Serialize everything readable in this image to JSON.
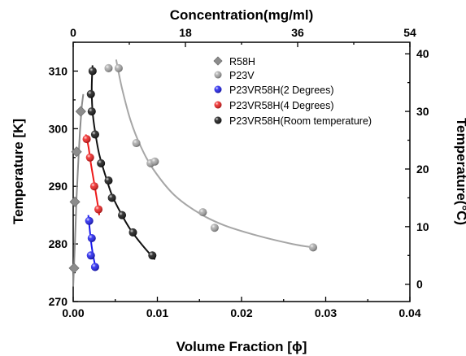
{
  "chart_data": {
    "type": "scatter",
    "xlabel": "Volume Fraction [ϕ]",
    "ylabel": "Temperature [K]",
    "x2label": "Concentration(mg/ml)",
    "y2label": "Temperature(°C)",
    "xlim": [
      0,
      0.04
    ],
    "ylim": [
      270,
      315
    ],
    "x2lim": [
      0,
      54
    ],
    "y2lim": [
      -3,
      42
    ],
    "xticks": [
      "0.00",
      "0.01",
      "0.02",
      "0.03",
      "0.04"
    ],
    "yticks": [
      "270",
      "280",
      "290",
      "300",
      "310"
    ],
    "x2ticks": [
      "0",
      "18",
      "36",
      "54"
    ],
    "y2ticks": [
      "0",
      "10",
      "20",
      "30",
      "40"
    ],
    "legend_placement": "top-right",
    "grid": false,
    "series": [
      {
        "name": "R58H",
        "color": "#8c8c8c",
        "marker": "diamond",
        "points": [
          [
            0.0001,
            275.8
          ],
          [
            0.0002,
            287.3
          ],
          [
            0.0004,
            296.0
          ],
          [
            0.0009,
            303.0
          ]
        ],
        "fit": [
          [
            0.0,
            272.6
          ],
          [
            0.0002,
            280.0
          ],
          [
            0.0004,
            288.0
          ],
          [
            0.0006,
            294.0
          ],
          [
            0.0008,
            299.5
          ],
          [
            0.001,
            303.5
          ],
          [
            0.0012,
            306.0
          ]
        ]
      },
      {
        "name": "P23V",
        "color": "#a6a6a6",
        "marker": "sphere",
        "points": [
          [
            0.0042,
            310.5
          ],
          [
            0.0054,
            310.5
          ],
          [
            0.0075,
            297.5
          ],
          [
            0.0092,
            294.0
          ],
          [
            0.0097,
            294.3
          ],
          [
            0.0154,
            285.5
          ],
          [
            0.0168,
            282.8
          ],
          [
            0.0285,
            279.4
          ]
        ],
        "fit": [
          [
            0.0051,
            312.0
          ],
          [
            0.0058,
            307.0
          ],
          [
            0.0068,
            301.5
          ],
          [
            0.008,
            297.0
          ],
          [
            0.0095,
            293.0
          ],
          [
            0.012,
            288.5
          ],
          [
            0.015,
            285.3
          ],
          [
            0.018,
            283.2
          ],
          [
            0.022,
            281.4
          ],
          [
            0.026,
            280.0
          ],
          [
            0.0285,
            279.4
          ]
        ]
      },
      {
        "name": "P23VR58H(2 Degrees)",
        "color": "#1a1aee",
        "marker": "sphere",
        "points": [
          [
            0.0019,
            284.0
          ],
          [
            0.0022,
            281.0
          ],
          [
            0.0021,
            278.0
          ],
          [
            0.0026,
            276.0
          ]
        ],
        "fit": [
          [
            0.0018,
            285.0
          ],
          [
            0.002,
            282.0
          ],
          [
            0.0022,
            279.5
          ],
          [
            0.0025,
            277.0
          ],
          [
            0.0027,
            275.8
          ]
        ]
      },
      {
        "name": "P23VR58H(4 Degrees)",
        "color": "#ee1a1a",
        "marker": "sphere",
        "points": [
          [
            0.0016,
            298.2
          ],
          [
            0.002,
            295.0
          ],
          [
            0.0025,
            290.0
          ],
          [
            0.003,
            286.0
          ]
        ],
        "fit": [
          [
            0.0015,
            299.0
          ],
          [
            0.0018,
            297.0
          ],
          [
            0.0021,
            294.0
          ],
          [
            0.0025,
            290.5
          ],
          [
            0.0029,
            287.0
          ],
          [
            0.0031,
            285.0
          ]
        ]
      },
      {
        "name": "P23VR58H(Room temperature)",
        "color": "#111111",
        "marker": "sphere",
        "points": [
          [
            0.0023,
            310.0
          ],
          [
            0.0021,
            306.0
          ],
          [
            0.0022,
            303.0
          ],
          [
            0.0026,
            299.0
          ],
          [
            0.0033,
            294.0
          ],
          [
            0.0042,
            291.0
          ],
          [
            0.0046,
            288.0
          ],
          [
            0.0058,
            285.0
          ],
          [
            0.0071,
            282.0
          ],
          [
            0.0094,
            278.0
          ]
        ],
        "fit": [
          [
            0.0023,
            311.0
          ],
          [
            0.0022,
            307.0
          ],
          [
            0.0023,
            303.0
          ],
          [
            0.0026,
            299.5
          ],
          [
            0.0031,
            295.5
          ],
          [
            0.0038,
            292.0
          ],
          [
            0.0046,
            288.5
          ],
          [
            0.0056,
            285.5
          ],
          [
            0.0068,
            282.5
          ],
          [
            0.0082,
            279.8
          ],
          [
            0.0097,
            277.3
          ]
        ]
      }
    ]
  }
}
